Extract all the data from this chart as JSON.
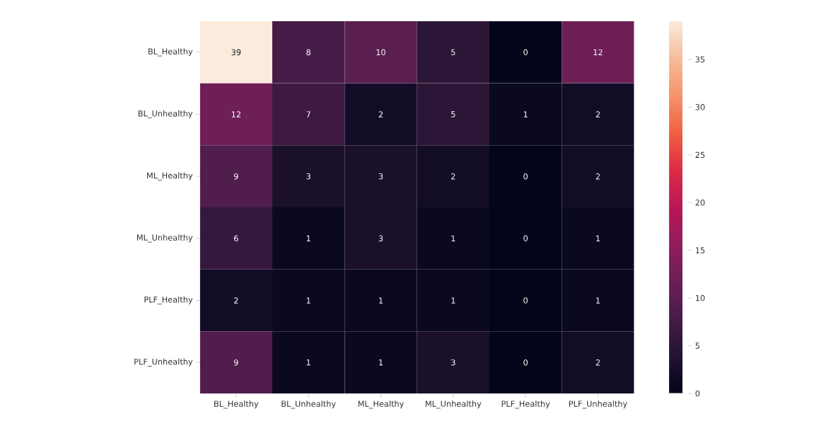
{
  "chart_data": {
    "type": "heatmap",
    "categories": [
      "BL_Healthy",
      "BL_Unhealthy",
      "ML_Healthy",
      "ML_Unhealthy",
      "PLF_Healthy",
      "PLF_Unhealthy"
    ],
    "y_categories": [
      "BL_Healthy",
      "BL_Unhealthy",
      "ML_Healthy",
      "ML_Unhealthy",
      "PLF_Healthy",
      "PLF_Unhealthy"
    ],
    "cells": [
      [
        39,
        8,
        10,
        5,
        0,
        12
      ],
      [
        12,
        7,
        2,
        5,
        1,
        2
      ],
      [
        9,
        3,
        3,
        2,
        0,
        2
      ],
      [
        6,
        1,
        3,
        1,
        0,
        1
      ],
      [
        2,
        1,
        1,
        1,
        0,
        1
      ],
      [
        9,
        1,
        1,
        3,
        0,
        2
      ]
    ],
    "clim": [
      0,
      39
    ],
    "cticks": [
      0,
      5,
      10,
      15,
      20,
      25,
      30,
      35
    ],
    "data_labels": true
  }
}
